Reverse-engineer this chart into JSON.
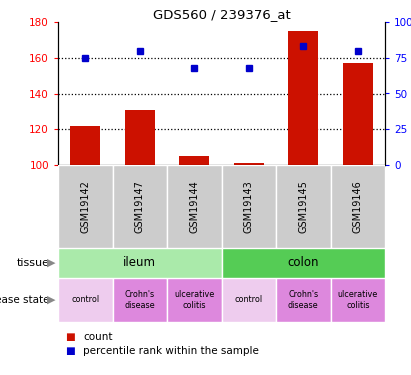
{
  "title": "GDS560 / 239376_at",
  "samples": [
    "GSM19142",
    "GSM19147",
    "GSM19144",
    "GSM19143",
    "GSM19145",
    "GSM19146"
  ],
  "bar_values": [
    122,
    131,
    105,
    101,
    175,
    157
  ],
  "bar_base": 100,
  "percentile_pct": [
    75,
    80,
    68,
    68,
    83,
    80
  ],
  "ylim_left": [
    100,
    180
  ],
  "ylim_right": [
    0,
    100
  ],
  "yticks_left": [
    100,
    120,
    140,
    160,
    180
  ],
  "ytick_labels_left": [
    "100",
    "120",
    "140",
    "160",
    "180"
  ],
  "ytick_labels_right": [
    "0",
    "25",
    "50",
    "75",
    "100%"
  ],
  "yticks_right": [
    0,
    25,
    50,
    75,
    100
  ],
  "bar_color": "#cc1100",
  "percentile_color": "#0000cc",
  "tissue_ileum_color": "#aaeaaa",
  "tissue_colon_color": "#55cc55",
  "disease_pink_color": "#dd88dd",
  "disease_control_color": "#eeccee",
  "sample_bg_color": "#cccccc",
  "tissue_row": [
    [
      "ileum",
      0,
      3
    ],
    [
      "colon",
      3,
      6
    ]
  ],
  "disease_row": [
    [
      "control",
      0,
      1,
      "control"
    ],
    [
      "Crohn's\ndisease",
      1,
      2,
      "pink"
    ],
    [
      "ulcerative\ncolitis",
      2,
      3,
      "pink"
    ],
    [
      "control",
      3,
      4,
      "control"
    ],
    [
      "Crohn's\ndisease",
      4,
      5,
      "pink"
    ],
    [
      "ulcerative\ncolitis",
      5,
      6,
      "pink"
    ]
  ],
  "legend_count_color": "#cc1100",
  "legend_pct_color": "#0000cc"
}
